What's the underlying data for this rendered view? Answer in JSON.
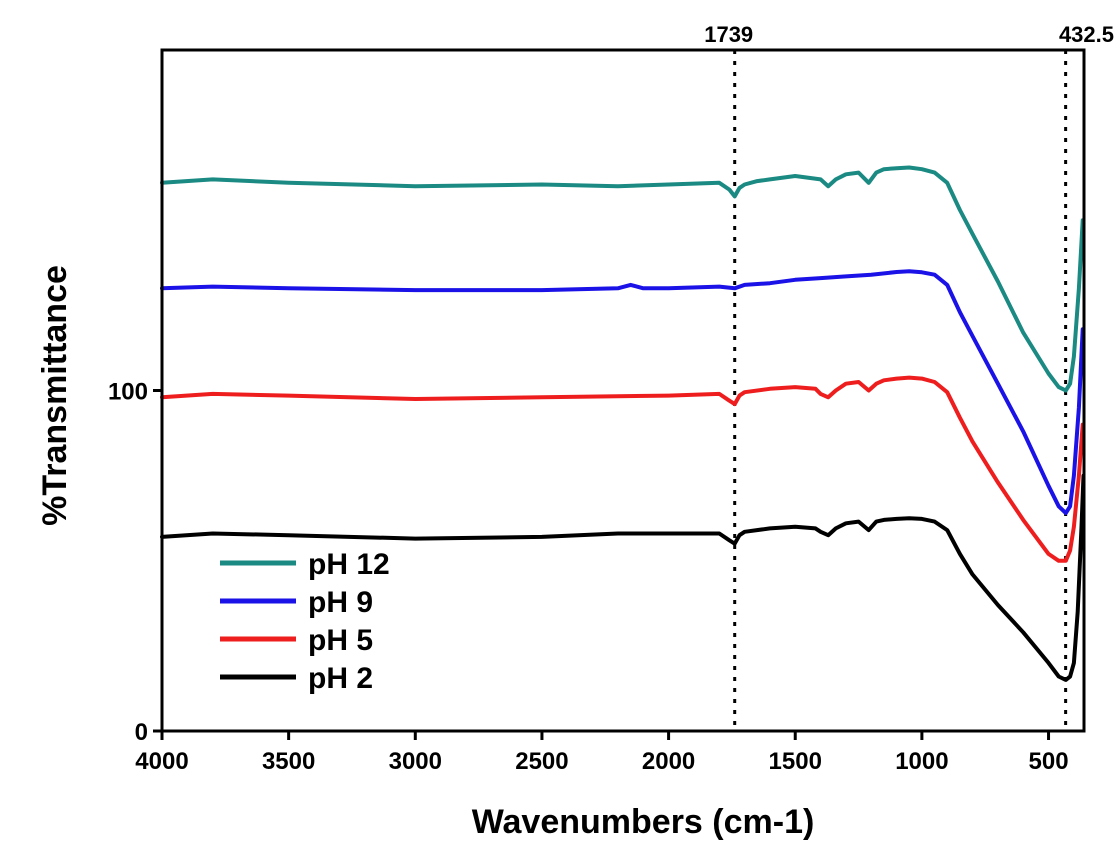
{
  "chart_data": {
    "type": "line",
    "title": "",
    "xlabel": "Wavenumbers (cm-1)",
    "ylabel": "%Transmittance",
    "xlim": [
      4000,
      360
    ],
    "ylim": [
      0,
      200
    ],
    "x_reversed": true,
    "x_ticks": [
      4000,
      3500,
      3000,
      2500,
      2000,
      1500,
      1000,
      500
    ],
    "x_tick_labels": [
      "4000",
      "3500",
      "3000",
      "2500",
      "2000",
      "1500",
      "1000",
      "500"
    ],
    "y_ticks": [
      0,
      100
    ],
    "y_tick_labels": [
      "0",
      "100"
    ],
    "grid": false,
    "legend_position": "bottom-left",
    "annotations": [
      {
        "x": 1739,
        "label": "1739",
        "style": "dotted vertical line"
      },
      {
        "x": 432.5,
        "label": "432.5",
        "style": "dotted vertical line"
      }
    ],
    "series": [
      {
        "name": "pH 12",
        "color": "#1a8a83",
        "x": [
          4000,
          3800,
          3500,
          3000,
          2500,
          2200,
          2000,
          1800,
          1760,
          1739,
          1720,
          1700,
          1650,
          1600,
          1500,
          1400,
          1370,
          1340,
          1300,
          1250,
          1210,
          1180,
          1150,
          1100,
          1050,
          1000,
          950,
          900,
          850,
          800,
          700,
          600,
          500,
          460,
          432,
          415,
          400,
          380,
          365
        ],
        "y": [
          161,
          162,
          161,
          160,
          160.5,
          160,
          160.5,
          161,
          159,
          157,
          159.5,
          160.5,
          161.5,
          162,
          163,
          162,
          160,
          162,
          163.5,
          164,
          161,
          164,
          165,
          165.3,
          165.5,
          165,
          164,
          161,
          153,
          146,
          132,
          117,
          105,
          101,
          100,
          102,
          110,
          130,
          150
        ]
      },
      {
        "name": "pH 9",
        "color": "#1a12e6",
        "x": [
          4000,
          3800,
          3500,
          3000,
          2500,
          2200,
          2150,
          2100,
          2000,
          1800,
          1739,
          1700,
          1600,
          1500,
          1400,
          1300,
          1200,
          1100,
          1050,
          1000,
          950,
          900,
          850,
          800,
          700,
          600,
          500,
          460,
          432,
          415,
          400,
          380,
          365
        ],
        "y": [
          130,
          130.5,
          130,
          129.5,
          129.5,
          130,
          131,
          130,
          130,
          130.5,
          130,
          131,
          131.5,
          132.5,
          133,
          133.5,
          134,
          134.8,
          135,
          134.7,
          134,
          131,
          123,
          116,
          102,
          88,
          72,
          66,
          64,
          66,
          75,
          95,
          118
        ]
      },
      {
        "name": "pH 5",
        "color": "#ee1e1e",
        "x": [
          4000,
          3800,
          3500,
          3000,
          2500,
          2000,
          1800,
          1760,
          1739,
          1720,
          1700,
          1600,
          1500,
          1420,
          1400,
          1370,
          1340,
          1300,
          1250,
          1210,
          1180,
          1150,
          1100,
          1050,
          1000,
          950,
          900,
          850,
          800,
          700,
          600,
          500,
          460,
          432,
          415,
          400,
          380,
          365
        ],
        "y": [
          98,
          99,
          98.5,
          97.5,
          98,
          98.5,
          99,
          97,
          96,
          98.5,
          99.5,
          100.5,
          101,
          100.5,
          99,
          98,
          100,
          102,
          102.5,
          100,
          102,
          103,
          103.5,
          103.8,
          103.5,
          102.5,
          99.5,
          92,
          85,
          73,
          62,
          52,
          50,
          50,
          53,
          60,
          75,
          90
        ]
      },
      {
        "name": "pH 2",
        "color": "#000000",
        "x": [
          4000,
          3800,
          3500,
          3000,
          2500,
          2200,
          2000,
          1800,
          1760,
          1739,
          1720,
          1700,
          1600,
          1500,
          1420,
          1400,
          1370,
          1340,
          1300,
          1250,
          1210,
          1180,
          1150,
          1100,
          1050,
          1000,
          950,
          900,
          850,
          800,
          700,
          600,
          500,
          460,
          432,
          415,
          400,
          385,
          370,
          362
        ],
        "y": [
          57,
          58,
          57.5,
          56.5,
          57,
          58,
          58,
          58,
          56,
          55,
          57.5,
          58.5,
          59.5,
          60,
          59.5,
          58.5,
          57.5,
          59.5,
          61,
          61.5,
          59,
          61.5,
          62,
          62.3,
          62.5,
          62.3,
          61.5,
          59,
          52,
          46,
          37,
          29,
          20,
          16,
          15,
          16,
          20,
          35,
          60,
          75
        ]
      }
    ]
  }
}
